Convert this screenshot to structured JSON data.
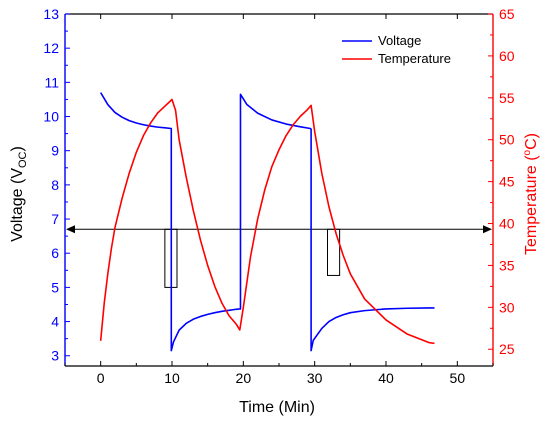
{
  "chart_data": {
    "type": "line",
    "xlabel": "Time (Min)",
    "ylabel_left_main": "Voltage (V",
    "ylabel_left_sub": "OC",
    "ylabel_left_close": ")",
    "ylabel_right_main": "Temperature (",
    "ylabel_right_deg": "o",
    "ylabel_right_close": "C)",
    "xlim": [
      -5,
      55
    ],
    "ylim_left": [
      2.7,
      13
    ],
    "ylim_right": [
      23,
      65
    ],
    "x_ticks": [
      0,
      10,
      20,
      30,
      40,
      50
    ],
    "y_left_ticks": [
      3,
      4,
      5,
      6,
      7,
      8,
      9,
      10,
      11,
      12,
      13
    ],
    "y_right_ticks": [
      25,
      30,
      35,
      40,
      45,
      50,
      55,
      60,
      65
    ],
    "legend_position": "top-right",
    "series": [
      {
        "name": "Voltage",
        "axis": "left",
        "color": "#0000ff",
        "x": [
          0,
          1,
          2,
          3,
          4,
          5,
          6,
          7,
          8,
          9,
          9.9,
          9.9,
          10.2,
          11,
          12,
          13,
          14,
          15,
          16,
          17,
          18,
          19,
          19.5,
          19.6,
          19.6,
          20.5,
          22,
          24,
          26,
          28,
          29.4,
          29.5,
          29.5,
          29.8,
          31,
          32,
          33,
          34,
          35,
          37,
          40,
          43,
          46,
          46.8
        ],
        "y": [
          10.7,
          10.35,
          10.12,
          9.98,
          9.88,
          9.81,
          9.76,
          9.72,
          9.69,
          9.67,
          9.65,
          3.15,
          3.4,
          3.75,
          3.95,
          4.07,
          4.15,
          4.21,
          4.26,
          4.3,
          4.33,
          4.36,
          4.37,
          4.37,
          10.65,
          10.35,
          10.1,
          9.9,
          9.78,
          9.7,
          9.65,
          9.63,
          3.15,
          3.45,
          3.8,
          4.0,
          4.12,
          4.2,
          4.26,
          4.32,
          4.37,
          4.39,
          4.4,
          4.4
        ]
      },
      {
        "name": "Temperature",
        "axis": "right",
        "color": "#ff0000",
        "x": [
          0,
          0.5,
          1,
          1.5,
          2,
          3,
          4,
          5,
          6,
          7,
          8,
          9,
          10,
          10.5,
          11,
          12,
          13,
          14,
          15,
          16,
          17,
          18,
          19,
          19.5,
          20,
          21,
          22,
          23,
          24,
          25,
          26,
          27,
          28,
          29,
          29.5,
          30,
          31,
          32,
          33,
          34,
          35,
          37,
          40,
          43,
          46,
          46.8
        ],
        "y": [
          26,
          30.5,
          34,
          37,
          39.5,
          43,
          46,
          48.5,
          50.5,
          52,
          53.2,
          54,
          54.8,
          53.5,
          50,
          45.5,
          41.5,
          38,
          35,
          32.5,
          30.5,
          29,
          28,
          27.3,
          30,
          36,
          40.5,
          44,
          46.8,
          48.8,
          50.5,
          51.8,
          52.8,
          53.6,
          54.1,
          51,
          46,
          42,
          38.8,
          36.2,
          34,
          31,
          28.5,
          26.8,
          25.8,
          25.7
        ]
      }
    ],
    "reference_arrow": {
      "y_left": 6.7,
      "x_start": -5,
      "x_end": 55
    },
    "markers": [
      {
        "x0": 9.0,
        "x1": 10.7,
        "y0": 5.0,
        "y1": 6.7
      },
      {
        "x0": 31.8,
        "x1": 33.5,
        "y0": 5.35,
        "y1": 6.7
      }
    ]
  }
}
